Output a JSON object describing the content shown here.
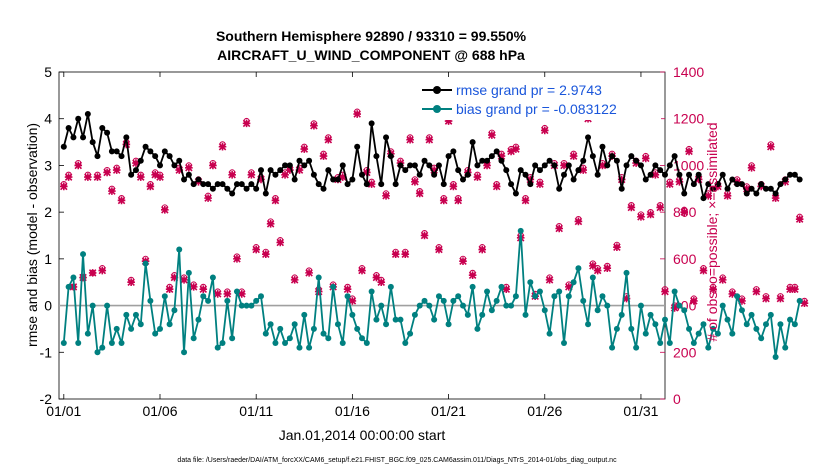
{
  "chart_data": {
    "type": "line",
    "title": "Southern Hemisphere 92890 / 93310 = 99.550%",
    "subtitle": "AIRCRAFT_U_WIND_COMPONENT @ 688 hPa",
    "xlabel": "Jan.01,2014 00:00:00 start",
    "ylabel": "rmse and bias (model - observation)",
    "ylabel_right": "# of obs: o=possible; ×=assimilated",
    "footer": "data file: /Users/raeder/DAI/ATM_forcXX/CAM6_setup/f.e21.FHIST_BGC.f09_025.CAM6assim.011/Diags_NTrS_2014-01/obs_diag_output.nc",
    "x_ticks": [
      "01/01",
      "01/06",
      "01/11",
      "01/16",
      "01/21",
      "01/26",
      "01/31"
    ],
    "x_tick_days": [
      0,
      5,
      10,
      15,
      20,
      25,
      30
    ],
    "xlim": [
      -0.25,
      31.25
    ],
    "ylim": [
      -2,
      5
    ],
    "y_ticks": [
      "-2",
      "-1",
      "0",
      "1",
      "2",
      "3",
      "4",
      "5"
    ],
    "ylim_right": [
      0,
      1400
    ],
    "y_ticks_right": [
      "0",
      "200",
      "400",
      "600",
      "800",
      "1000",
      "1200",
      "1400"
    ],
    "colors": {
      "rmse": "#000000",
      "bias": "#008080",
      "counts": "#c8004f",
      "zero": "#a0a0a0",
      "legend_text": "#1a56db"
    },
    "legend": [
      {
        "name": "rmse grand pr = 2.9743",
        "color": "#000000"
      },
      {
        "name": "bias grand pr = -0.083122",
        "color": "#008080"
      }
    ],
    "time_step_days": 0.25,
    "series": [
      {
        "name": "rmse",
        "axis": "left",
        "values": [
          3.4,
          3.8,
          3.6,
          4.0,
          3.6,
          4.1,
          3.5,
          3.2,
          3.8,
          3.7,
          3.3,
          3.3,
          3.2,
          3.6,
          2.8,
          2.9,
          3.1,
          3.4,
          3.3,
          3.2,
          3.0,
          3.3,
          3.2,
          3.0,
          3.1,
          2.7,
          2.8,
          2.6,
          2.7,
          2.6,
          2.6,
          2.5,
          2.6,
          2.6,
          2.5,
          2.4,
          2.6,
          2.6,
          2.5,
          2.6,
          2.5,
          2.9,
          2.4,
          2.9,
          2.8,
          2.9,
          3.0,
          3.0,
          2.7,
          3.1,
          3.0,
          3.1,
          2.8,
          2.6,
          2.5,
          2.9,
          2.7,
          2.7,
          3.0,
          2.6,
          2.7,
          3.4,
          2.8,
          2.6,
          3.9,
          3.2,
          2.6,
          3.6,
          3.2,
          2.6,
          3.0,
          2.9,
          3.0,
          3.0,
          2.8,
          3.1,
          3.0,
          2.8,
          3.0,
          2.6,
          3.2,
          3.3,
          2.9,
          2.7,
          2.8,
          3.5,
          3.0,
          3.1,
          3.1,
          3.2,
          3.3,
          3.1,
          2.9,
          2.6,
          2.4,
          2.9,
          2.8,
          2.6,
          3.0,
          2.9,
          3.0,
          3.1,
          3.0,
          2.5,
          2.8,
          3.0,
          2.7,
          2.9,
          3.1,
          3.6,
          3.2,
          2.8,
          3.4,
          3.0,
          3.2,
          3.1,
          2.5,
          3.0,
          3.2,
          3.1,
          3.0,
          2.7,
          2.8,
          3.0,
          2.9,
          2.8,
          3.0,
          3.2,
          2.8,
          2.4,
          2.8,
          2.6,
          2.8,
          2.3,
          2.6,
          2.5,
          2.6,
          2.8,
          2.5,
          2.7,
          2.6,
          2.6,
          2.4,
          2.5,
          2.4,
          2.6,
          2.5,
          2.5,
          2.4,
          2.6,
          2.7,
          2.8,
          2.8,
          2.7
        ]
      },
      {
        "name": "bias",
        "axis": "left",
        "values": [
          -0.8,
          0.4,
          0.6,
          -0.8,
          1.1,
          -0.6,
          0.0,
          -1.0,
          -0.9,
          0.0,
          -0.8,
          -0.5,
          -0.8,
          -0.2,
          -0.5,
          -0.2,
          -0.4,
          0.9,
          0.1,
          -0.6,
          -0.5,
          0.2,
          -0.4,
          -0.1,
          1.2,
          -1.0,
          0.7,
          -0.7,
          -0.3,
          0.2,
          0.1,
          0.6,
          -0.9,
          -0.8,
          0.1,
          -0.7,
          0.3,
          0.0,
          0.0,
          0.0,
          0.1,
          0.2,
          -0.6,
          -0.4,
          -0.8,
          -0.5,
          -0.8,
          -0.7,
          -0.4,
          -0.9,
          -0.2,
          -0.9,
          -0.5,
          0.6,
          -0.6,
          -0.7,
          0.4,
          -0.4,
          -0.8,
          0.2,
          -0.2,
          -0.5,
          -0.7,
          -0.8,
          0.3,
          -0.3,
          0.0,
          -0.4,
          0.4,
          -0.3,
          -0.3,
          -0.8,
          -0.6,
          -0.2,
          0.0,
          0.1,
          0.0,
          -0.3,
          0.2,
          0.1,
          -0.4,
          0.1,
          0.2,
          0.0,
          -0.2,
          0.4,
          -0.5,
          -0.2,
          0.3,
          -0.1,
          0.1,
          0.4,
          0.0,
          0.0,
          0.2,
          1.6,
          -0.2,
          0.5,
          0.2,
          0.3,
          -0.1,
          -0.6,
          0.2,
          0.3,
          -0.8,
          0.2,
          0.5,
          0.8,
          0.1,
          -0.4,
          0.6,
          -0.1,
          0.2,
          0.0,
          -0.9,
          -0.5,
          -0.2,
          0.7,
          -0.5,
          -0.9,
          0.0,
          -0.6,
          -0.2,
          -0.4,
          -0.8,
          -0.3,
          -0.8,
          0.3,
          0.0,
          -0.1,
          -0.5,
          -0.8,
          -0.6,
          -0.4,
          -0.9,
          -0.5,
          -0.6,
          0.0,
          -0.3,
          -0.6,
          0.2,
          -0.1,
          -0.4,
          -0.2,
          -0.5,
          -0.7,
          -0.4,
          -0.2,
          -1.1,
          -0.4,
          -0.9,
          -0.3,
          -0.4,
          0.1
        ]
      },
      {
        "name": "possible",
        "axis": "right",
        "values": [
          920,
          960,
          480,
          1010,
          520,
          960,
          540,
          960,
          560,
          980,
          900,
          990,
          860,
          1100,
          510,
          1020,
          960,
          600,
          920,
          970,
          960,
          820,
          480,
          530,
          990,
          520,
          1000,
          490,
          940,
          480,
          870,
          1010,
          460,
          1090,
          460,
          970,
          610,
          460,
          1190,
          970,
          650,
          950,
          630,
          760,
          860,
          680,
          970,
          990,
          520,
          990,
          1080,
          550,
          1180,
          470,
          1050,
          1120,
          490,
          950,
          960,
          480,
          430,
          1230,
          560,
          980,
          930,
          530,
          510,
          880,
          1060,
          630,
          1020,
          630,
          1120,
          940,
          890,
          710,
          1120,
          990,
          650,
          860,
          1200,
          920,
          860,
          600,
          980,
          540,
          960,
          650,
          1010,
          1140,
          920,
          1050,
          480,
          1070,
          1080,
          700,
          860,
          950,
          450,
          930,
          1160,
          520,
          1010,
          740,
          1010,
          490,
          1050,
          770,
          990,
          1210,
          580,
          560,
          1010,
          570,
          1050,
          660,
          950,
          440,
          830,
          1020,
          790,
          1040,
          800,
          970,
          830,
          470,
          930,
          400,
          940,
          810,
          1070,
          430,
          950,
          560,
          880,
          480,
          920,
          520,
          880,
          460,
          940,
          430,
          910,
          1000,
          470,
          920,
          440,
          1090,
          870,
          440,
          940,
          480,
          480,
          780,
          420
        ]
      },
      {
        "name": "assimilated",
        "axis": "right",
        "values": [
          910,
          950,
          480,
          1000,
          520,
          950,
          540,
          950,
          550,
          970,
          890,
          980,
          850,
          1090,
          500,
          1010,
          950,
          590,
          910,
          960,
          950,
          810,
          470,
          520,
          980,
          510,
          990,
          480,
          930,
          470,
          860,
          1000,
          450,
          1080,
          450,
          960,
          600,
          450,
          1180,
          960,
          640,
          940,
          620,
          750,
          850,
          670,
          960,
          980,
          510,
          980,
          1070,
          540,
          1170,
          460,
          1040,
          1110,
          480,
          940,
          950,
          470,
          420,
          1220,
          550,
          970,
          920,
          520,
          500,
          870,
          1050,
          620,
          1010,
          620,
          1110,
          930,
          880,
          700,
          1110,
          980,
          640,
          850,
          1190,
          910,
          850,
          590,
          970,
          530,
          950,
          640,
          1000,
          1130,
          910,
          1040,
          470,
          1060,
          1070,
          690,
          850,
          940,
          440,
          920,
          1150,
          510,
          1000,
          730,
          1000,
          480,
          1040,
          760,
          980,
          1200,
          570,
          550,
          1000,
          560,
          1040,
          650,
          940,
          430,
          820,
          1010,
          780,
          1030,
          790,
          960,
          820,
          460,
          920,
          390,
          930,
          800,
          1060,
          420,
          940,
          550,
          870,
          470,
          910,
          510,
          870,
          450,
          930,
          420,
          900,
          990,
          460,
          910,
          430,
          1080,
          860,
          430,
          930,
          470,
          470,
          770,
          410
        ]
      }
    ]
  }
}
